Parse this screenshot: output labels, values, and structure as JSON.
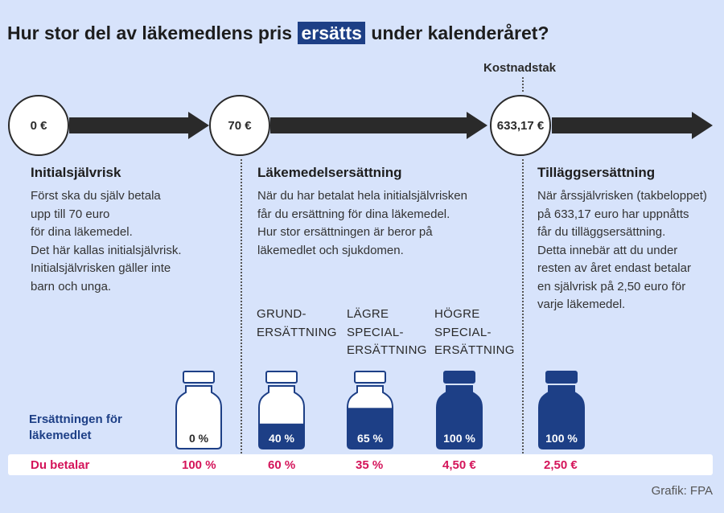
{
  "title": {
    "before": "Hur stor del av läkemedlens pris",
    "highlight": "ersätts",
    "after": "under kalenderåret?"
  },
  "cap_label": "Kostnadstak",
  "thresholds": [
    "0 €",
    "70 €",
    "633,17 €"
  ],
  "sections": [
    {
      "heading": "Initialsjälvrisk",
      "lines": [
        "Först ska du själv betala",
        "upp till 70 euro",
        "för dina läkemedel.",
        "Det här kallas initialsjälvrisk.",
        "Initialsjälvrisken gäller inte",
        "barn och unga."
      ]
    },
    {
      "heading": "Läkemedelsersättning",
      "lines": [
        "När du har betalat hela initialsjälvrisken",
        "får du ersättning för dina läkemedel.",
        "Hur stor ersättningen är beror på",
        "läkemedlet och sjukdomen."
      ]
    },
    {
      "heading": "Tilläggsersättning",
      "lines": [
        "När årssjälvrisken (takbeloppet)",
        "på 633,17 euro har uppnåtts",
        "får du tilläggsersättning.",
        "Detta innebär att du under",
        "resten av året endast betalar",
        "en självrisk på 2,50 euro för",
        "varje läkemedel."
      ]
    }
  ],
  "tiers": [
    {
      "lines": [
        "GRUND-",
        "ERSÄTTNING"
      ]
    },
    {
      "lines": [
        "LÄGRE",
        "SPECIAL-",
        "ERSÄTTNING"
      ]
    },
    {
      "lines": [
        "HÖGRE",
        "SPECIAL-",
        "ERSÄTTNING"
      ]
    }
  ],
  "reimbursement_label": [
    "Ersättningen för",
    "läkemedlet"
  ],
  "pay_label": "Du betalar",
  "bottles": [
    {
      "reimbursed": "0 %",
      "fill_fraction": 0.0,
      "pays": "100 %"
    },
    {
      "reimbursed": "40 %",
      "fill_fraction": 0.4,
      "pays": "60 %"
    },
    {
      "reimbursed": "65 %",
      "fill_fraction": 0.65,
      "pays": "35 %"
    },
    {
      "reimbursed": "100 %",
      "fill_fraction": 1.0,
      "pays": "4,50 €"
    },
    {
      "reimbursed": "100 %",
      "fill_fraction": 1.0,
      "pays": "2,50 €"
    }
  ],
  "credit": "Grafik: FPA",
  "colors": {
    "background": "#d7e3fb",
    "navy": "#1d3f86",
    "magenta": "#d4145a",
    "dark": "#2a2a2a"
  }
}
